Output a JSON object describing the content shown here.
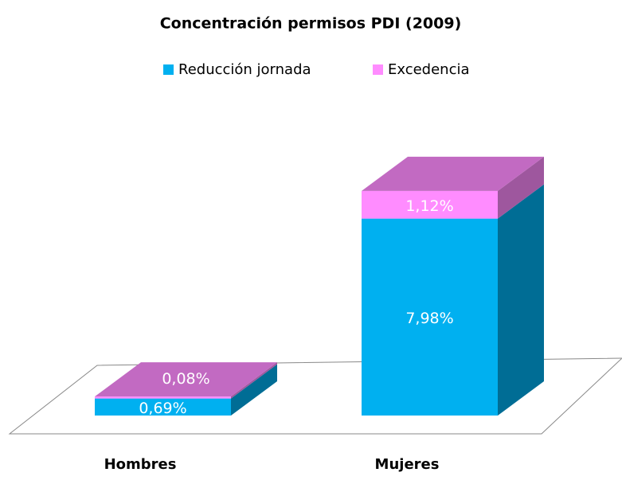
{
  "chart_data": {
    "type": "bar3d_stacked",
    "title": "Concentración permisos PDI (2009)",
    "categories": [
      "Hombres",
      "Mujeres"
    ],
    "series": [
      {
        "name": "Reducción jornada",
        "color": "#00b0f0",
        "values": [
          0.69,
          7.98
        ],
        "value_labels": [
          "0,69%",
          "7,98%"
        ]
      },
      {
        "name": "Excedencia",
        "color": "#ff8cff",
        "values": [
          0.08,
          1.12
        ],
        "value_labels": [
          "0,08%",
          "1,12%"
        ]
      }
    ]
  }
}
